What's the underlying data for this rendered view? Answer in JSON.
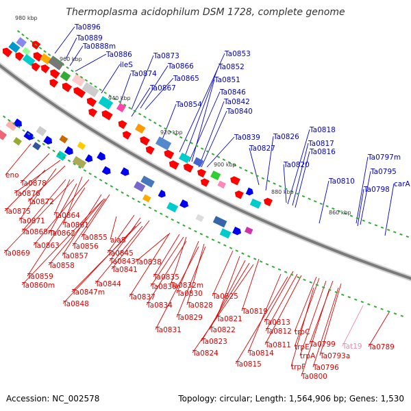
{
  "title": "Thermoplasma acidophilum DSM 1728, complete genome",
  "footer": {
    "accession": "Accession: NC_002578",
    "summary": "Topology: circular; Length: 1,564,906 bp; Genes: 1,530"
  },
  "colors": {
    "forward_label": "#0000cc",
    "reverse_label": "#dd0000",
    "rna_label": "#ee88aa",
    "backbone": "#7a7a7a"
  },
  "ticks": [
    "980 kbp",
    "960 kbp",
    "940 kbp",
    "920 kbp",
    "900 kbp",
    "880 kbp",
    "860 kbp"
  ],
  "forward_genes": [
    "Ta0896",
    "Ta0889",
    "Ta0888m",
    "Ta0886",
    "ileS",
    "Ta0873",
    "Ta0874",
    "Ta0866",
    "Ta0865",
    "Ta0867",
    "Ta0854",
    "Ta0853",
    "Ta0852",
    "Ta0851",
    "Ta0846",
    "Ta0842",
    "Ta0840",
    "Ta0839",
    "Ta0827",
    "Ta0826",
    "Ta0820",
    "Ta0818",
    "Ta0817",
    "Ta0816",
    "Ta0810",
    "Ta0798",
    "Ta0797m",
    "Ta0795",
    "carA"
  ],
  "reverse_genes": [
    "eno",
    "Ta0878",
    "Ta0876",
    "Ta0872",
    "Ta0875",
    "Ta0871",
    "Ta0864",
    "Ta0868m",
    "Ta0861",
    "Ta0862",
    "Ta0869",
    "Ta0863",
    "Ta0855",
    "Ta0856",
    "alaS",
    "Ta0857",
    "Ta0858",
    "Ta0845",
    "Ta0843",
    "Ta0841",
    "Ta0838",
    "Ta0859",
    "Ta0860m",
    "Ta0844",
    "Ta0847m",
    "Ta0848",
    "Ta0835",
    "Ta0836",
    "Ta0832m",
    "Ta0837",
    "Ta0834",
    "Ta0830",
    "Ta0828",
    "Ta0829",
    "Ta0825",
    "Ta0831",
    "Ta0819",
    "Ta0821",
    "Ta0822",
    "Ta0823",
    "Ta0824",
    "Ta0813",
    "Ta0812",
    "trpC",
    "Ta0811",
    "trpE",
    "Ta0814",
    "trpA",
    "Ta0799",
    "Ta0793a",
    "Ta0815",
    "trpF",
    "Ta0796",
    "Ta0800",
    "Ta0789"
  ],
  "rna_genes": [
    "Tat19"
  ]
}
